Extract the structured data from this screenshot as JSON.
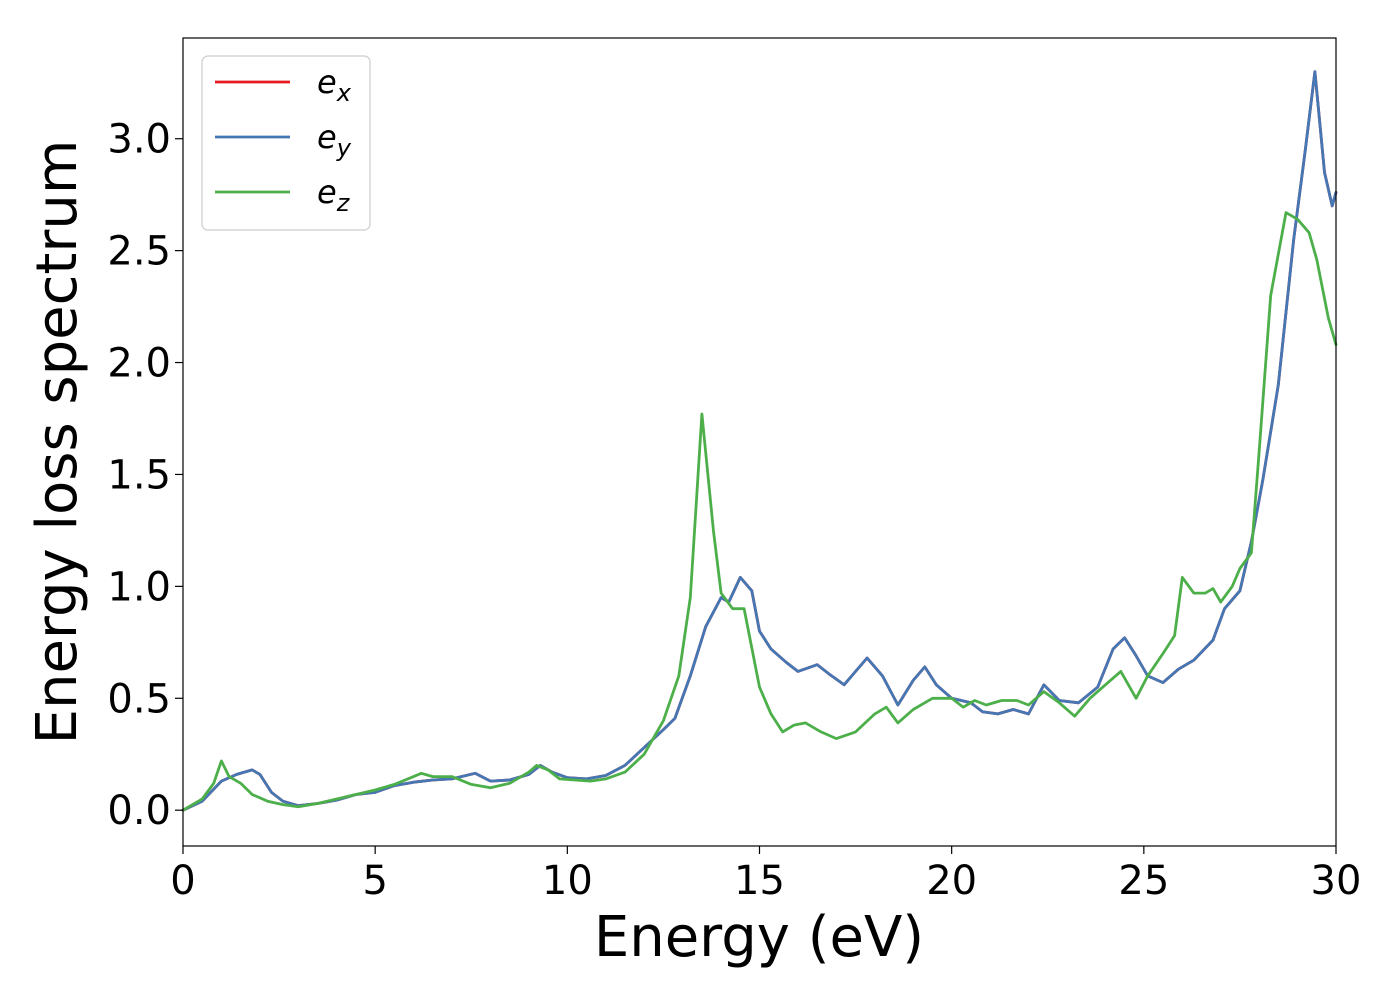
{
  "chart_data": {
    "type": "line",
    "title": "",
    "xlabel": "Energy (eV)",
    "ylabel": "Energy loss spectrum",
    "xlim": [
      0,
      30
    ],
    "ylim": [
      -0.16,
      3.45
    ],
    "xticks": [
      0,
      5,
      10,
      15,
      20,
      25,
      30
    ],
    "xtick_labels": [
      "0",
      "5",
      "10",
      "15",
      "20",
      "25",
      "30"
    ],
    "yticks": [
      0.0,
      0.5,
      1.0,
      1.5,
      2.0,
      2.5,
      3.0
    ],
    "ytick_labels": [
      "0.0",
      "0.5",
      "1.0",
      "1.5",
      "2.0",
      "2.5",
      "3.0"
    ],
    "grid": false,
    "legend_position": "upper-left",
    "series": [
      {
        "name": "e",
        "sub": "x",
        "color": "#e41a1c",
        "points": [
          [
            0,
            0
          ],
          [
            0.5,
            0.04
          ],
          [
            1.0,
            0.13
          ],
          [
            1.4,
            0.16
          ],
          [
            1.8,
            0.18
          ],
          [
            2.0,
            0.16
          ],
          [
            2.3,
            0.08
          ],
          [
            2.6,
            0.04
          ],
          [
            3.0,
            0.02
          ],
          [
            3.5,
            0.03
          ],
          [
            4.0,
            0.045
          ],
          [
            4.5,
            0.07
          ],
          [
            5.0,
            0.08
          ],
          [
            5.5,
            0.11
          ],
          [
            6.0,
            0.125
          ],
          [
            6.5,
            0.135
          ],
          [
            7.0,
            0.14
          ],
          [
            7.6,
            0.165
          ],
          [
            8.0,
            0.13
          ],
          [
            8.5,
            0.135
          ],
          [
            9.0,
            0.16
          ],
          [
            9.3,
            0.2
          ],
          [
            9.6,
            0.17
          ],
          [
            10.0,
            0.145
          ],
          [
            10.5,
            0.14
          ],
          [
            11.0,
            0.155
          ],
          [
            11.5,
            0.2
          ],
          [
            12.0,
            0.28
          ],
          [
            12.5,
            0.36
          ],
          [
            12.8,
            0.41
          ],
          [
            13.2,
            0.6
          ],
          [
            13.6,
            0.82
          ],
          [
            14.0,
            0.95
          ],
          [
            14.2,
            0.93
          ],
          [
            14.5,
            1.04
          ],
          [
            14.8,
            0.98
          ],
          [
            15.0,
            0.8
          ],
          [
            15.3,
            0.72
          ],
          [
            15.7,
            0.66
          ],
          [
            16.0,
            0.62
          ],
          [
            16.5,
            0.65
          ],
          [
            16.8,
            0.61
          ],
          [
            17.2,
            0.56
          ],
          [
            17.5,
            0.62
          ],
          [
            17.8,
            0.68
          ],
          [
            18.2,
            0.6
          ],
          [
            18.6,
            0.47
          ],
          [
            19.0,
            0.58
          ],
          [
            19.3,
            0.64
          ],
          [
            19.6,
            0.56
          ],
          [
            20.0,
            0.5
          ],
          [
            20.5,
            0.48
          ],
          [
            20.8,
            0.44
          ],
          [
            21.2,
            0.43
          ],
          [
            21.6,
            0.45
          ],
          [
            22.0,
            0.43
          ],
          [
            22.4,
            0.56
          ],
          [
            22.8,
            0.49
          ],
          [
            23.3,
            0.48
          ],
          [
            23.8,
            0.55
          ],
          [
            24.2,
            0.72
          ],
          [
            24.5,
            0.77
          ],
          [
            24.8,
            0.69
          ],
          [
            25.1,
            0.6
          ],
          [
            25.5,
            0.57
          ],
          [
            25.9,
            0.63
          ],
          [
            26.3,
            0.67
          ],
          [
            26.8,
            0.76
          ],
          [
            27.1,
            0.9
          ],
          [
            27.5,
            0.98
          ],
          [
            27.8,
            1.2
          ],
          [
            28.1,
            1.48
          ],
          [
            28.5,
            1.9
          ],
          [
            28.9,
            2.55
          ],
          [
            29.2,
            2.95
          ],
          [
            29.45,
            3.3
          ],
          [
            29.7,
            2.85
          ],
          [
            29.9,
            2.7
          ],
          [
            30.0,
            2.76
          ]
        ]
      },
      {
        "name": "e",
        "sub": "y",
        "color": "#4477b3",
        "points": [
          [
            0,
            0
          ],
          [
            0.5,
            0.04
          ],
          [
            1.0,
            0.13
          ],
          [
            1.4,
            0.16
          ],
          [
            1.8,
            0.18
          ],
          [
            2.0,
            0.16
          ],
          [
            2.3,
            0.08
          ],
          [
            2.6,
            0.04
          ],
          [
            3.0,
            0.02
          ],
          [
            3.5,
            0.03
          ],
          [
            4.0,
            0.045
          ],
          [
            4.5,
            0.07
          ],
          [
            5.0,
            0.08
          ],
          [
            5.5,
            0.11
          ],
          [
            6.0,
            0.125
          ],
          [
            6.5,
            0.135
          ],
          [
            7.0,
            0.14
          ],
          [
            7.6,
            0.165
          ],
          [
            8.0,
            0.13
          ],
          [
            8.5,
            0.135
          ],
          [
            9.0,
            0.16
          ],
          [
            9.3,
            0.2
          ],
          [
            9.6,
            0.17
          ],
          [
            10.0,
            0.145
          ],
          [
            10.5,
            0.14
          ],
          [
            11.0,
            0.155
          ],
          [
            11.5,
            0.2
          ],
          [
            12.0,
            0.28
          ],
          [
            12.5,
            0.36
          ],
          [
            12.8,
            0.41
          ],
          [
            13.2,
            0.6
          ],
          [
            13.6,
            0.82
          ],
          [
            14.0,
            0.95
          ],
          [
            14.2,
            0.93
          ],
          [
            14.5,
            1.04
          ],
          [
            14.8,
            0.98
          ],
          [
            15.0,
            0.8
          ],
          [
            15.3,
            0.72
          ],
          [
            15.7,
            0.66
          ],
          [
            16.0,
            0.62
          ],
          [
            16.5,
            0.65
          ],
          [
            16.8,
            0.61
          ],
          [
            17.2,
            0.56
          ],
          [
            17.5,
            0.62
          ],
          [
            17.8,
            0.68
          ],
          [
            18.2,
            0.6
          ],
          [
            18.6,
            0.47
          ],
          [
            19.0,
            0.58
          ],
          [
            19.3,
            0.64
          ],
          [
            19.6,
            0.56
          ],
          [
            20.0,
            0.5
          ],
          [
            20.5,
            0.48
          ],
          [
            20.8,
            0.44
          ],
          [
            21.2,
            0.43
          ],
          [
            21.6,
            0.45
          ],
          [
            22.0,
            0.43
          ],
          [
            22.4,
            0.56
          ],
          [
            22.8,
            0.49
          ],
          [
            23.3,
            0.48
          ],
          [
            23.8,
            0.55
          ],
          [
            24.2,
            0.72
          ],
          [
            24.5,
            0.77
          ],
          [
            24.8,
            0.69
          ],
          [
            25.1,
            0.6
          ],
          [
            25.5,
            0.57
          ],
          [
            25.9,
            0.63
          ],
          [
            26.3,
            0.67
          ],
          [
            26.8,
            0.76
          ],
          [
            27.1,
            0.9
          ],
          [
            27.5,
            0.98
          ],
          [
            27.8,
            1.2
          ],
          [
            28.1,
            1.48
          ],
          [
            28.5,
            1.9
          ],
          [
            28.9,
            2.55
          ],
          [
            29.2,
            2.95
          ],
          [
            29.45,
            3.3
          ],
          [
            29.7,
            2.85
          ],
          [
            29.9,
            2.7
          ],
          [
            30.0,
            2.76
          ]
        ]
      },
      {
        "name": "e",
        "sub": "z",
        "color": "#4daf4a",
        "points": [
          [
            0,
            0
          ],
          [
            0.5,
            0.05
          ],
          [
            0.8,
            0.12
          ],
          [
            1.0,
            0.22
          ],
          [
            1.2,
            0.15
          ],
          [
            1.5,
            0.12
          ],
          [
            1.8,
            0.07
          ],
          [
            2.2,
            0.04
          ],
          [
            2.6,
            0.025
          ],
          [
            3.0,
            0.015
          ],
          [
            3.5,
            0.03
          ],
          [
            4.0,
            0.05
          ],
          [
            4.5,
            0.07
          ],
          [
            5.0,
            0.09
          ],
          [
            5.5,
            0.115
          ],
          [
            6.0,
            0.15
          ],
          [
            6.2,
            0.165
          ],
          [
            6.5,
            0.15
          ],
          [
            7.0,
            0.15
          ],
          [
            7.5,
            0.115
          ],
          [
            8.0,
            0.1
          ],
          [
            8.5,
            0.12
          ],
          [
            9.0,
            0.17
          ],
          [
            9.2,
            0.2
          ],
          [
            9.5,
            0.18
          ],
          [
            9.8,
            0.14
          ],
          [
            10.2,
            0.135
          ],
          [
            10.6,
            0.13
          ],
          [
            11.0,
            0.14
          ],
          [
            11.5,
            0.17
          ],
          [
            12.0,
            0.25
          ],
          [
            12.5,
            0.4
          ],
          [
            12.9,
            0.6
          ],
          [
            13.2,
            0.95
          ],
          [
            13.5,
            1.77
          ],
          [
            13.8,
            1.25
          ],
          [
            14.0,
            0.97
          ],
          [
            14.3,
            0.9
          ],
          [
            14.6,
            0.9
          ],
          [
            15.0,
            0.55
          ],
          [
            15.3,
            0.43
          ],
          [
            15.6,
            0.35
          ],
          [
            15.9,
            0.38
          ],
          [
            16.2,
            0.39
          ],
          [
            16.6,
            0.35
          ],
          [
            17.0,
            0.32
          ],
          [
            17.5,
            0.35
          ],
          [
            18.0,
            0.43
          ],
          [
            18.3,
            0.46
          ],
          [
            18.6,
            0.39
          ],
          [
            19.0,
            0.45
          ],
          [
            19.5,
            0.5
          ],
          [
            20.0,
            0.5
          ],
          [
            20.3,
            0.46
          ],
          [
            20.6,
            0.49
          ],
          [
            20.9,
            0.47
          ],
          [
            21.3,
            0.49
          ],
          [
            21.7,
            0.49
          ],
          [
            22.0,
            0.47
          ],
          [
            22.4,
            0.53
          ],
          [
            22.8,
            0.48
          ],
          [
            23.2,
            0.42
          ],
          [
            23.6,
            0.5
          ],
          [
            24.0,
            0.56
          ],
          [
            24.4,
            0.62
          ],
          [
            24.8,
            0.5
          ],
          [
            25.1,
            0.6
          ],
          [
            25.5,
            0.7
          ],
          [
            25.8,
            0.78
          ],
          [
            26.0,
            1.04
          ],
          [
            26.3,
            0.97
          ],
          [
            26.6,
            0.97
          ],
          [
            26.8,
            0.99
          ],
          [
            27.0,
            0.93
          ],
          [
            27.3,
            1.0
          ],
          [
            27.5,
            1.08
          ],
          [
            27.8,
            1.15
          ],
          [
            28.0,
            1.6
          ],
          [
            28.3,
            2.3
          ],
          [
            28.7,
            2.67
          ],
          [
            29.0,
            2.64
          ],
          [
            29.3,
            2.58
          ],
          [
            29.5,
            2.46
          ],
          [
            29.8,
            2.2
          ],
          [
            30.0,
            2.08
          ]
        ]
      }
    ]
  }
}
